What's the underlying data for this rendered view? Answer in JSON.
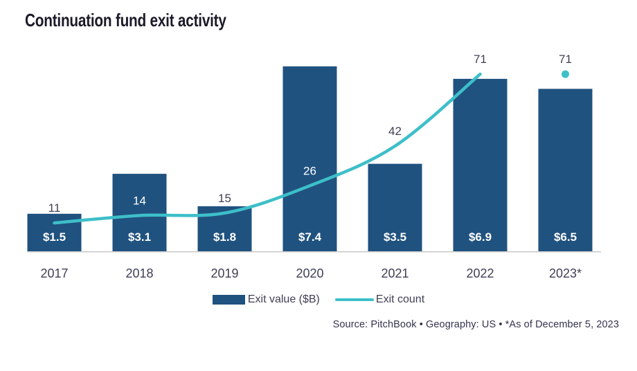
{
  "title": "Continuation fund exit activity",
  "chart_data": {
    "type": "bar",
    "categories": [
      "2017",
      "2018",
      "2019",
      "2020",
      "2021",
      "2022",
      "2023*"
    ],
    "series": [
      {
        "name": "Exit value ($B)",
        "type": "bar",
        "values": [
          1.5,
          3.1,
          1.8,
          7.4,
          3.5,
          6.9,
          6.5
        ],
        "data_labels": [
          "$1.5",
          "$3.1",
          "$1.8",
          "$7.4",
          "$3.5",
          "$6.9",
          "$6.5"
        ]
      },
      {
        "name": "Exit count",
        "type": "line",
        "values": [
          11,
          14,
          15,
          26,
          42,
          71,
          71
        ],
        "data_labels": [
          "11",
          "14",
          "15",
          "26",
          "42",
          "71",
          "71"
        ],
        "last_point_isolated_dot": true
      }
    ],
    "xlabel": "",
    "ylabel": "",
    "gridlines": false,
    "legend_position": "bottom"
  },
  "legend": {
    "items": [
      {
        "label": "Exit value ($B)",
        "swatch": "bar"
      },
      {
        "label": "Exit count",
        "swatch": "line"
      }
    ]
  },
  "footnote": "Source: PitchBook  •  Geography: US  •  *As of December 5, 2023",
  "colors": {
    "bar_navy": "#20527F",
    "line_teal": "#3DBFC9",
    "label_dark": "#3E3F55",
    "bar_label_white": "#FFFFFF",
    "axis_grey": "#C8C8C8",
    "title_dark": "#1A1A28"
  }
}
